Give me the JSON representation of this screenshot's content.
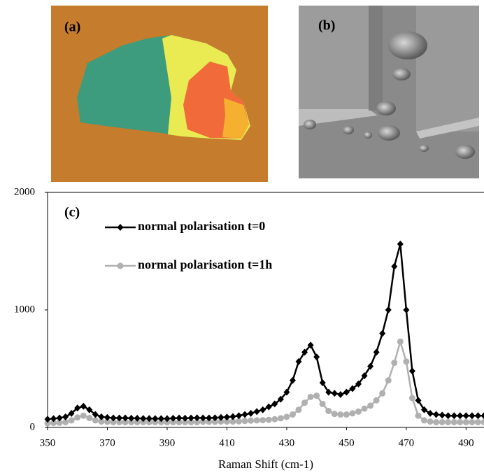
{
  "panels": {
    "a": "(a)",
    "b": "(b)"
  },
  "chart_data": {
    "type": "line",
    "annotation": "(c)",
    "x_label": "Raman Shift (cm-1)",
    "x": [
      350,
      352,
      354,
      356,
      358,
      360,
      362,
      364,
      366,
      368,
      370,
      372,
      374,
      376,
      378,
      380,
      382,
      384,
      386,
      388,
      390,
      392,
      394,
      396,
      398,
      400,
      402,
      404,
      406,
      408,
      410,
      412,
      414,
      416,
      418,
      420,
      422,
      424,
      426,
      428,
      430,
      432,
      434,
      436,
      438,
      440,
      442,
      444,
      446,
      448,
      450,
      452,
      454,
      456,
      458,
      460,
      462,
      464,
      466,
      468,
      470,
      472,
      474,
      476,
      478,
      480,
      482,
      484,
      486,
      488,
      490,
      492,
      494,
      496
    ],
    "series": [
      {
        "name": "normal polarisation t=0",
        "color": "#000000",
        "marker": "diamond",
        "values": [
          70,
          75,
          80,
          90,
          120,
          165,
          180,
          150,
          110,
          90,
          85,
          80,
          80,
          80,
          78,
          78,
          76,
          76,
          75,
          75,
          75,
          78,
          80,
          78,
          80,
          82,
          80,
          80,
          82,
          85,
          88,
          92,
          100,
          110,
          120,
          135,
          150,
          175,
          200,
          240,
          300,
          400,
          560,
          640,
          700,
          600,
          380,
          300,
          290,
          280,
          300,
          330,
          370,
          440,
          520,
          640,
          800,
          1000,
          1370,
          1560,
          1000,
          480,
          230,
          150,
          120,
          110,
          105,
          100,
          100,
          100,
          100,
          100,
          100,
          100
        ]
      },
      {
        "name": "normal polarisation t=1h",
        "color": "#b0b0b0",
        "marker": "circle",
        "values": [
          35,
          38,
          40,
          45,
          60,
          85,
          100,
          80,
          60,
          50,
          48,
          45,
          45,
          45,
          45,
          45,
          45,
          45,
          45,
          45,
          45,
          45,
          45,
          45,
          45,
          45,
          48,
          48,
          48,
          50,
          50,
          50,
          52,
          55,
          58,
          60,
          62,
          65,
          70,
          78,
          90,
          110,
          150,
          210,
          260,
          270,
          200,
          140,
          115,
          110,
          110,
          120,
          135,
          160,
          185,
          230,
          290,
          400,
          550,
          730,
          560,
          250,
          100,
          60,
          50,
          45,
          45,
          45,
          45,
          45,
          45,
          45,
          45,
          45
        ]
      }
    ],
    "xlim": [
      350,
      496
    ],
    "xticks": [
      350,
      370,
      390,
      410,
      430,
      450,
      470,
      490
    ],
    "ylim": [
      0,
      2000
    ],
    "yticks": [
      0,
      1000,
      2000
    ]
  }
}
